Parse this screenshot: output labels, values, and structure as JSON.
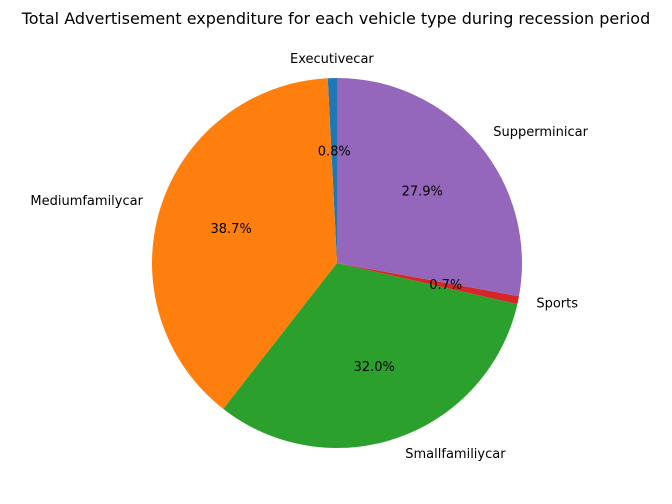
{
  "chart_data": {
    "type": "pie",
    "title": "Total Advertisement expenditure for each vehicle type during recession period",
    "start_angle_deg": 90,
    "direction": "counterclockwise",
    "slices": [
      {
        "label": "Executivecar",
        "value": 0.8,
        "pct_label": "0.8%",
        "color": "#1f77b4"
      },
      {
        "label": "Mediumfamilycar",
        "value": 38.7,
        "pct_label": "38.7%",
        "color": "#ff7f0e"
      },
      {
        "label": "Smallfamiliycar",
        "value": 32.0,
        "pct_label": "32.0%",
        "color": "#2ca02c"
      },
      {
        "label": "Sports",
        "value": 0.7,
        "pct_label": "0.7%",
        "color": "#d62728"
      },
      {
        "label": "Supperminicar",
        "value": 27.9,
        "pct_label": "27.9%",
        "color": "#9467bd"
      }
    ]
  }
}
